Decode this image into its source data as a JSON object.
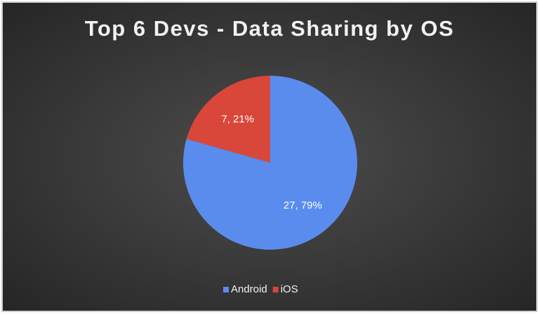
{
  "chart_data": {
    "type": "pie",
    "title": "Top 6 Devs - Data Sharing by OS",
    "categories": [
      "Android",
      "iOS"
    ],
    "values": [
      27,
      7
    ],
    "value_labels": [
      "27, 79%",
      "7, 21%"
    ],
    "colors": [
      "#5a8cee",
      "#d9473b"
    ],
    "legend": "bottom"
  }
}
